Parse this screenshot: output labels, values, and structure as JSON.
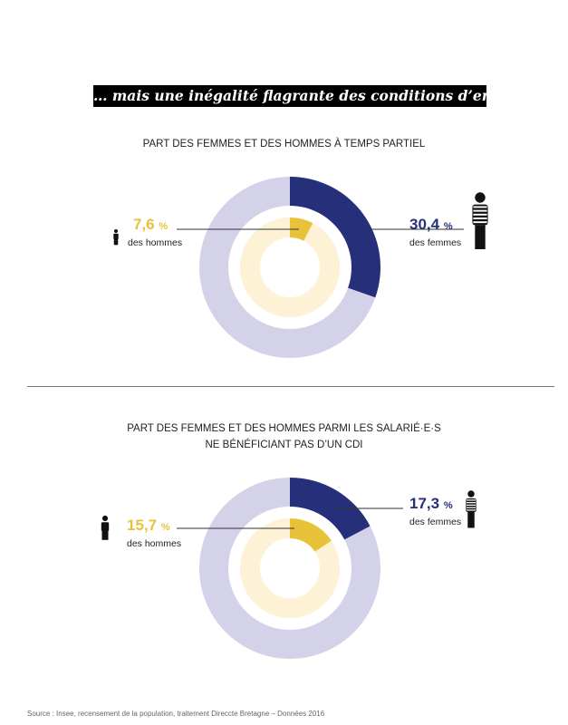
{
  "banner": "… mais une inégalité flagrante des conditions d’emploi",
  "colors": {
    "women": "#26307a",
    "women_rest": "#d3d2e8",
    "men": "#e8c33a",
    "men_rest": "#fdf1d6"
  },
  "chart_data": [
    {
      "type": "donut",
      "title": "PART DES FEMMES ET DES HOMMES À TEMPS PARTIEL",
      "series": [
        {
          "name": "des femmes",
          "value": 30.4,
          "label": "30,4",
          "unit": "%",
          "ring": "outer"
        },
        {
          "name": "des hommes",
          "value": 7.6,
          "label": "7,6",
          "unit": "%",
          "ring": "inner"
        }
      ]
    },
    {
      "type": "donut",
      "title_lines": [
        "PART DES FEMMES ET DES HOMMES PARMI LES SALARIÉ·E·S",
        "NE BÉNÉFICIANT PAS D’UN CDI"
      ],
      "series": [
        {
          "name": "des femmes",
          "value": 17.3,
          "label": "17,3",
          "unit": "%",
          "ring": "outer"
        },
        {
          "name": "des hommes",
          "value": 15.7,
          "label": "15,7",
          "unit": "%",
          "ring": "inner"
        }
      ]
    }
  ],
  "icons": {
    "women": "woman-icon",
    "men": "man-icon"
  },
  "source": "Source : Insee, recensement de la population, traitement Direccte Bretagne – Données 2016"
}
